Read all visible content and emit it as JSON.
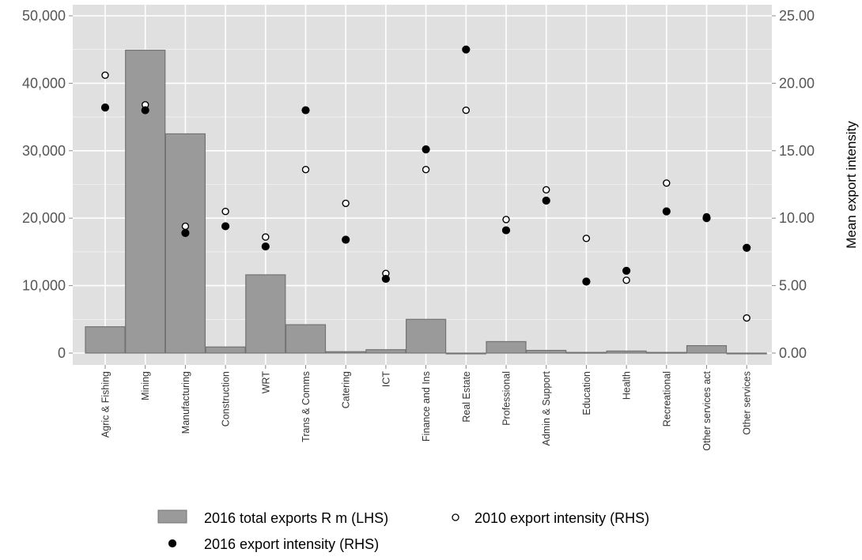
{
  "chart_data": {
    "type": "bar",
    "categories": [
      "Agric & Fishing",
      "Mining",
      "Manufacturing",
      "Construction",
      "WRT",
      "Trans & Comms",
      "Catering",
      "ICT",
      "Finance and Ins",
      "Real Estate",
      "Professional",
      "Admin & Support",
      "Education",
      "Health",
      "Recreational",
      "Other services act",
      "Other services"
    ],
    "series": [
      {
        "name": "2016 total exports R m (LHS)",
        "kind": "bar",
        "axis": "left",
        "values": [
          3900,
          44900,
          32500,
          900,
          11600,
          4200,
          200,
          500,
          5000,
          -100,
          1700,
          400,
          100,
          300,
          100,
          1100,
          -100
        ]
      },
      {
        "name": "2010 export intensity (RHS)",
        "kind": "point-open",
        "axis": "right",
        "values": [
          20.6,
          18.4,
          9.4,
          10.5,
          8.6,
          13.6,
          11.1,
          5.9,
          13.6,
          18.0,
          9.9,
          12.1,
          8.5,
          5.4,
          12.6,
          10.1,
          2.6
        ]
      },
      {
        "name": "2016 export intensity (RHS)",
        "kind": "point-filled",
        "axis": "right",
        "values": [
          18.2,
          18.0,
          8.9,
          9.4,
          7.9,
          18.0,
          8.4,
          5.5,
          15.1,
          22.5,
          9.1,
          11.3,
          5.3,
          6.1,
          10.5,
          10.0,
          7.8
        ]
      }
    ],
    "y_left": {
      "label": "",
      "ylim": [
        0,
        50000
      ],
      "ticks": [
        "0",
        "10,000",
        "20,000",
        "30,000",
        "40,000",
        "50,000"
      ],
      "tick_values": [
        0,
        10000,
        20000,
        30000,
        40000,
        50000
      ]
    },
    "y_right": {
      "label": "Mean export intensity",
      "ylim": [
        0,
        25
      ],
      "ticks": [
        "0.00",
        "5.00",
        "10.00",
        "15.00",
        "20.00",
        "25.00"
      ],
      "tick_values": [
        0,
        5,
        10,
        15,
        20,
        25
      ]
    },
    "xlabel": "",
    "grid": true,
    "legend_position": "bottom",
    "colors": {
      "panel": "#e0e0e0",
      "grid": "#ffffff",
      "bar_fill": "#9a9a9a",
      "bar_stroke": "#737373",
      "point": "#000000",
      "axis": "#888888"
    }
  }
}
